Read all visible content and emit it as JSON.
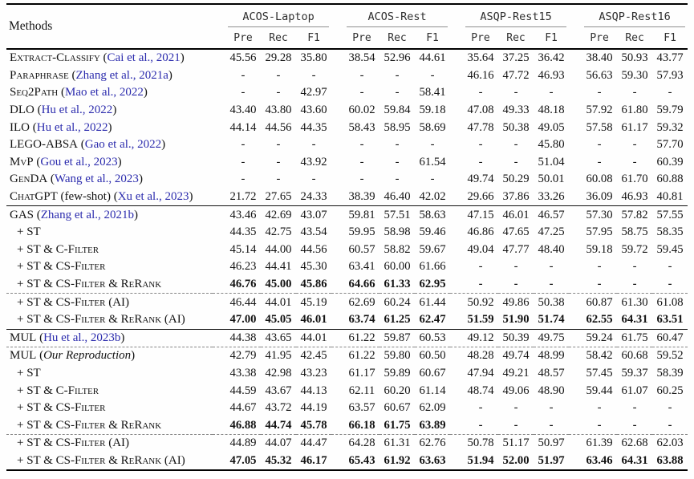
{
  "colors": {
    "citation": "#2b2bad",
    "cmidrule_gray": "#8f8f8f"
  },
  "header": {
    "methods_label": "Methods",
    "groups": [
      {
        "name": "ACOS-Laptop",
        "subcols": [
          "Pre",
          "Rec",
          "F1"
        ]
      },
      {
        "name": "ACOS-Rest",
        "subcols": [
          "Pre",
          "Rec",
          "F1"
        ]
      },
      {
        "name": "ASQP-Rest15",
        "subcols": [
          "Pre",
          "Rec",
          "F1"
        ]
      },
      {
        "name": "ASQP-Rest16",
        "subcols": [
          "Pre",
          "Rec",
          "F1"
        ]
      }
    ]
  },
  "sections": [
    {
      "rows": [
        {
          "label": [
            {
              "t": "Extract-Classify",
              "s": "sc"
            },
            {
              "t": " (",
              "s": "p"
            },
            {
              "t": "Cai et al., 2021",
              "s": "c"
            },
            {
              "t": ")",
              "s": "p"
            }
          ],
          "indent": false,
          "bold": false,
          "dashed_above": false,
          "values": [
            "45.56",
            "29.28",
            "35.80",
            "38.54",
            "52.96",
            "44.61",
            "35.64",
            "37.25",
            "36.42",
            "38.40",
            "50.93",
            "43.77"
          ]
        },
        {
          "label": [
            {
              "t": "Paraphrase",
              "s": "sc"
            },
            {
              "t": " (",
              "s": "p"
            },
            {
              "t": "Zhang et al., 2021a",
              "s": "c"
            },
            {
              "t": ")",
              "s": "p"
            }
          ],
          "indent": false,
          "bold": false,
          "dashed_above": false,
          "values": [
            "-",
            "-",
            "-",
            "-",
            "-",
            "-",
            "46.16",
            "47.72",
            "46.93",
            "56.63",
            "59.30",
            "57.93"
          ]
        },
        {
          "label": [
            {
              "t": "Seq2Path",
              "s": "sc"
            },
            {
              "t": " (",
              "s": "p"
            },
            {
              "t": "Mao et al., 2022",
              "s": "c"
            },
            {
              "t": ")",
              "s": "p"
            }
          ],
          "indent": false,
          "bold": false,
          "dashed_above": false,
          "values": [
            "-",
            "-",
            "42.97",
            "-",
            "-",
            "58.41",
            "-",
            "-",
            "-",
            "-",
            "-",
            "-"
          ]
        },
        {
          "label": [
            {
              "t": "DLO",
              "s": "sc"
            },
            {
              "t": " (",
              "s": "p"
            },
            {
              "t": "Hu et al., 2022",
              "s": "c"
            },
            {
              "t": ")",
              "s": "p"
            }
          ],
          "indent": false,
          "bold": false,
          "dashed_above": false,
          "values": [
            "43.40",
            "43.80",
            "43.60",
            "60.02",
            "59.84",
            "59.18",
            "47.08",
            "49.33",
            "48.18",
            "57.92",
            "61.80",
            "59.79"
          ]
        },
        {
          "label": [
            {
              "t": "ILO",
              "s": "sc"
            },
            {
              "t": " (",
              "s": "p"
            },
            {
              "t": "Hu et al., 2022",
              "s": "c"
            },
            {
              "t": ")",
              "s": "p"
            }
          ],
          "indent": false,
          "bold": false,
          "dashed_above": false,
          "values": [
            "44.14",
            "44.56",
            "44.35",
            "58.43",
            "58.95",
            "58.69",
            "47.78",
            "50.38",
            "49.05",
            "57.58",
            "61.17",
            "59.32"
          ]
        },
        {
          "label": [
            {
              "t": "LEGO-ABSA",
              "s": "sc"
            },
            {
              "t": " (",
              "s": "p"
            },
            {
              "t": "Gao et al., 2022",
              "s": "c"
            },
            {
              "t": ")",
              "s": "p"
            }
          ],
          "indent": false,
          "bold": false,
          "dashed_above": false,
          "values": [
            "-",
            "-",
            "-",
            "-",
            "-",
            "-",
            "-",
            "-",
            "45.80",
            "-",
            "-",
            "57.70"
          ]
        },
        {
          "label": [
            {
              "t": "MvP",
              "s": "sc"
            },
            {
              "t": " (",
              "s": "p"
            },
            {
              "t": "Gou et al., 2023",
              "s": "c"
            },
            {
              "t": ")",
              "s": "p"
            }
          ],
          "indent": false,
          "bold": false,
          "dashed_above": false,
          "values": [
            "-",
            "-",
            "43.92",
            "-",
            "-",
            "61.54",
            "-",
            "-",
            "51.04",
            "-",
            "-",
            "60.39"
          ]
        },
        {
          "label": [
            {
              "t": "GenDA",
              "s": "sc"
            },
            {
              "t": " (",
              "s": "p"
            },
            {
              "t": "Wang et al., 2023",
              "s": "c"
            },
            {
              "t": ")",
              "s": "p"
            }
          ],
          "indent": false,
          "bold": false,
          "dashed_above": false,
          "values": [
            "-",
            "-",
            "-",
            "-",
            "-",
            "-",
            "49.74",
            "50.29",
            "50.01",
            "60.08",
            "61.70",
            "60.88"
          ]
        },
        {
          "label": [
            {
              "t": "ChatGPT",
              "s": "sc"
            },
            {
              "t": " (few-shot) (",
              "s": "p"
            },
            {
              "t": "Xu et al., 2023",
              "s": "c"
            },
            {
              "t": ")",
              "s": "p"
            }
          ],
          "indent": false,
          "bold": false,
          "dashed_above": false,
          "values": [
            "21.72",
            "27.65",
            "24.33",
            "38.39",
            "46.40",
            "42.02",
            "29.66",
            "37.86",
            "33.26",
            "36.09",
            "46.93",
            "40.81"
          ]
        }
      ]
    },
    {
      "rows": [
        {
          "label": [
            {
              "t": "GAS",
              "s": "sc"
            },
            {
              "t": " (",
              "s": "p"
            },
            {
              "t": "Zhang et al., 2021b",
              "s": "c"
            },
            {
              "t": ")",
              "s": "p"
            }
          ],
          "indent": false,
          "bold": false,
          "dashed_above": false,
          "values": [
            "43.46",
            "42.69",
            "43.07",
            "59.81",
            "57.51",
            "58.63",
            "47.15",
            "46.01",
            "46.57",
            "57.30",
            "57.82",
            "57.55"
          ]
        },
        {
          "label": [
            {
              "t": "+ ST",
              "s": "sc"
            }
          ],
          "indent": true,
          "bold": false,
          "dashed_above": false,
          "values": [
            "44.35",
            "42.75",
            "43.54",
            "59.95",
            "58.98",
            "59.46",
            "46.86",
            "47.65",
            "47.25",
            "57.95",
            "58.75",
            "58.35"
          ]
        },
        {
          "label": [
            {
              "t": "+ ST & C-Filter",
              "s": "sc"
            }
          ],
          "indent": true,
          "bold": false,
          "dashed_above": false,
          "values": [
            "45.14",
            "44.00",
            "44.56",
            "60.57",
            "58.82",
            "59.67",
            "49.04",
            "47.77",
            "48.40",
            "59.18",
            "59.72",
            "59.45"
          ]
        },
        {
          "label": [
            {
              "t": "+ ST & CS-Filter",
              "s": "sc"
            }
          ],
          "indent": true,
          "bold": false,
          "dashed_above": false,
          "values": [
            "46.23",
            "44.41",
            "45.30",
            "63.41",
            "60.00",
            "61.66",
            "-",
            "-",
            "-",
            "-",
            "-",
            "-"
          ]
        },
        {
          "label": [
            {
              "t": "+ ST & CS-Filter & ReRank",
              "s": "sc"
            }
          ],
          "indent": true,
          "bold": true,
          "dashed_above": false,
          "values": [
            "46.76",
            "45.00",
            "45.86",
            "64.66",
            "61.33",
            "62.95",
            "-",
            "-",
            "-",
            "-",
            "-",
            "-"
          ]
        },
        {
          "label": [
            {
              "t": "+ ST & CS-Filter (AI)",
              "s": "sc"
            }
          ],
          "indent": true,
          "bold": false,
          "dashed_above": true,
          "values": [
            "46.44",
            "44.01",
            "45.19",
            "62.69",
            "60.24",
            "61.44",
            "50.92",
            "49.86",
            "50.38",
            "60.87",
            "61.30",
            "61.08"
          ]
        },
        {
          "label": [
            {
              "t": "+ ST & CS-Filter & ReRank (AI)",
              "s": "sc"
            }
          ],
          "indent": true,
          "bold": true,
          "dashed_above": false,
          "values": [
            "47.00",
            "45.05",
            "46.01",
            "63.74",
            "61.25",
            "62.47",
            "51.59",
            "51.90",
            "51.74",
            "62.55",
            "64.31",
            "63.51"
          ]
        }
      ]
    },
    {
      "rows": [
        {
          "label": [
            {
              "t": "MUL",
              "s": "sc"
            },
            {
              "t": " (",
              "s": "p"
            },
            {
              "t": "Hu et al., 2023b",
              "s": "c"
            },
            {
              "t": ")",
              "s": "p"
            }
          ],
          "indent": false,
          "bold": false,
          "dashed_above": false,
          "values": [
            "44.38",
            "43.65",
            "44.01",
            "61.22",
            "59.87",
            "60.53",
            "49.12",
            "50.39",
            "49.75",
            "59.24",
            "61.75",
            "60.47"
          ]
        },
        {
          "label": [
            {
              "t": "MUL",
              "s": "sc"
            },
            {
              "t": " (",
              "s": "p"
            },
            {
              "t": "Our Reproduction",
              "s": "i"
            },
            {
              "t": ")",
              "s": "p"
            }
          ],
          "indent": false,
          "bold": false,
          "dashed_above": true,
          "values": [
            "42.79",
            "41.95",
            "42.45",
            "61.22",
            "59.80",
            "60.50",
            "48.28",
            "49.74",
            "48.99",
            "58.42",
            "60.68",
            "59.52"
          ]
        },
        {
          "label": [
            {
              "t": "+ ST",
              "s": "sc"
            }
          ],
          "indent": true,
          "bold": false,
          "dashed_above": false,
          "values": [
            "43.38",
            "42.98",
            "43.23",
            "61.17",
            "59.89",
            "60.67",
            "47.94",
            "49.21",
            "48.57",
            "57.45",
            "59.37",
            "58.39"
          ]
        },
        {
          "label": [
            {
              "t": "+ ST & C-Filter",
              "s": "sc"
            }
          ],
          "indent": true,
          "bold": false,
          "dashed_above": false,
          "values": [
            "44.59",
            "43.67",
            "44.13",
            "62.11",
            "60.20",
            "61.14",
            "48.74",
            "49.06",
            "48.90",
            "59.44",
            "61.07",
            "60.25"
          ]
        },
        {
          "label": [
            {
              "t": "+ ST & CS-Filter",
              "s": "sc"
            }
          ],
          "indent": true,
          "bold": false,
          "dashed_above": false,
          "values": [
            "44.67",
            "43.72",
            "44.19",
            "63.57",
            "60.67",
            "62.09",
            "-",
            "-",
            "-",
            "-",
            "-",
            "-"
          ]
        },
        {
          "label": [
            {
              "t": "+ ST & CS-Filter & ReRank",
              "s": "sc"
            }
          ],
          "indent": true,
          "bold": true,
          "dashed_above": false,
          "values": [
            "46.88",
            "44.74",
            "45.78",
            "66.18",
            "61.75",
            "63.89",
            "-",
            "-",
            "-",
            "-",
            "-",
            "-"
          ]
        },
        {
          "label": [
            {
              "t": "+ ST & CS-Filter (AI)",
              "s": "sc"
            }
          ],
          "indent": true,
          "bold": false,
          "dashed_above": true,
          "values": [
            "44.89",
            "44.07",
            "44.47",
            "64.28",
            "61.31",
            "62.76",
            "50.78",
            "51.17",
            "50.97",
            "61.39",
            "62.68",
            "62.03"
          ]
        },
        {
          "label": [
            {
              "t": "+ ST & CS-Filter & ReRank (AI)",
              "s": "sc"
            }
          ],
          "indent": true,
          "bold": true,
          "dashed_above": false,
          "values": [
            "47.05",
            "45.32",
            "46.17",
            "65.43",
            "61.92",
            "63.63",
            "51.94",
            "52.00",
            "51.97",
            "63.46",
            "64.31",
            "63.88"
          ]
        }
      ]
    }
  ]
}
